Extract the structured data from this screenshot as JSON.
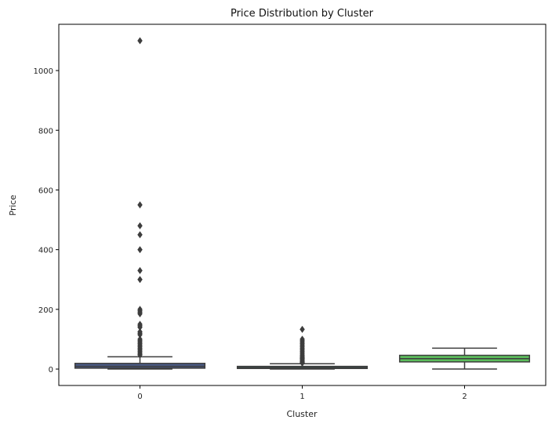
{
  "chart_data": {
    "type": "box",
    "title": "Price Distribution by Cluster",
    "xlabel": "Cluster",
    "ylabel": "Price",
    "ylim": [
      -55,
      1155
    ],
    "yticks": [
      0,
      200,
      400,
      600,
      800,
      1000
    ],
    "categories": [
      "0",
      "1",
      "2"
    ],
    "grid": false,
    "boxes": [
      {
        "category": "0",
        "color": "#4a5a86",
        "whisker_low": 0,
        "q1": 3,
        "median": 9,
        "q3": 19,
        "whisker_high": 41,
        "outliers": [
          1100,
          550,
          480,
          450,
          400,
          330,
          300,
          200,
          195,
          190,
          185,
          150,
          145,
          140,
          125,
          120,
          115,
          100,
          95,
          90,
          85,
          80,
          75,
          70,
          65,
          60,
          55,
          50,
          47
        ]
      },
      {
        "category": "1",
        "color": "#2f9a8e",
        "whisker_low": 0,
        "q1": 2,
        "median": 5,
        "q3": 9,
        "whisker_high": 18,
        "outliers": [
          133,
          100,
          95,
          90,
          85,
          80,
          75,
          70,
          65,
          60,
          55,
          50,
          45,
          42,
          38,
          35,
          32,
          28,
          25,
          22,
          20
        ]
      },
      {
        "category": "2",
        "color": "#5cbd5c",
        "whisker_low": 0,
        "q1": 24,
        "median": 35,
        "q3": 46,
        "whisker_high": 70,
        "outliers": []
      }
    ]
  }
}
